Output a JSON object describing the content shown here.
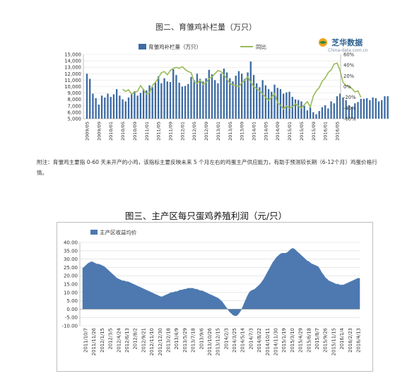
{
  "chart_data": [
    {
      "type": "bar",
      "title": "图二、育雏鸡补栏量（万只）",
      "legend": [
        "育雏鸡补栏量（万只）",
        "同比"
      ],
      "legend_position": "top",
      "colors": {
        "bar": "#3d6ba3",
        "line": "#9bbb59"
      },
      "y_left_ticks": [
        "15,000",
        "14,000",
        "13,000",
        "12,000",
        "11,000",
        "10,000",
        "9,000",
        "8,000",
        "7,000",
        "6,000",
        "5,000"
      ],
      "y_left_range": [
        5000,
        15000
      ],
      "y_right_ticks": [
        "60%",
        "40%",
        "20%",
        "0%",
        "-20%",
        "-40%",
        "-60%"
      ],
      "y_right_range": [
        -60,
        60
      ],
      "x_ticks": [
        "2009/05",
        "2009/09",
        "2010/01",
        "2010/05",
        "2010/09",
        "2011/01",
        "2011/05",
        "2011/09",
        "2012/01",
        "2012/05",
        "2012/09",
        "2013/01",
        "2013/05",
        "2013/09",
        "2014/01",
        "2014/05",
        "2014/09",
        "2015/01",
        "2015/05",
        "2015/09",
        "2016/01",
        "2016/05"
      ],
      "series": [
        {
          "name": "育雏鸡补栏量（万只）",
          "kind": "bar",
          "start": "2009/05",
          "values": [
            12000,
            11200,
            8900,
            8200,
            7200,
            8600,
            8300,
            8900,
            8400,
            8800,
            9600,
            8600,
            8000,
            7700,
            8300,
            8800,
            9300,
            8600,
            9000,
            9600,
            9400,
            10200,
            9900,
            10600,
            11600,
            10500,
            11300,
            10800,
            10700,
            12700,
            11800,
            10600,
            10000,
            10100,
            10400,
            11500,
            11000,
            12000,
            11200,
            10800,
            11300,
            12600,
            11900,
            11000,
            10500,
            12000,
            12800,
            12200,
            11300,
            10800,
            11700,
            12400,
            12000,
            11200,
            12200,
            13900,
            11800,
            10500,
            9900,
            11000,
            10200,
            9600,
            9200,
            10300,
            9800,
            9600,
            8900,
            9100,
            9200,
            8400,
            8000,
            7900,
            7700,
            7000,
            6300,
            6800,
            6000,
            5700,
            6200,
            6800,
            7100,
            6600,
            7700,
            7400,
            8500,
            8900,
            8300,
            7900,
            7100,
            6800,
            7400,
            7600,
            8100,
            8100,
            8200,
            7900,
            8300,
            8200,
            7700,
            7900,
            8500,
            8500
          ]
        },
        {
          "name": "同比",
          "kind": "line",
          "start": "2010/05",
          "values": [
            -5,
            -9,
            -6,
            -14,
            -10,
            -9,
            2,
            -6,
            -14,
            -12,
            2,
            8,
            16,
            26,
            28,
            22,
            30,
            34,
            36,
            34,
            37,
            32,
            28,
            26,
            9,
            6,
            12,
            4,
            7,
            15,
            18,
            24,
            30,
            28,
            22,
            14,
            6,
            3,
            2,
            0,
            7,
            12,
            18,
            8,
            0,
            -4,
            -8,
            -14,
            -20,
            -26,
            -20,
            -13,
            -30,
            -35,
            -42,
            -36,
            -40,
            -38,
            -32,
            -36,
            -40,
            -34,
            -28,
            -38,
            -18,
            -8,
            -2,
            10,
            16,
            26,
            31,
            42,
            44,
            30,
            8,
            2,
            0,
            -4,
            -10,
            -8,
            -20
          ]
        }
      ]
    },
    {
      "type": "area",
      "title": "图三、主产区每只蛋鸡养殖利润（元/只）",
      "legend": [
        "主产区收益均价"
      ],
      "legend_position": "top-left",
      "color": "#4d79b0",
      "ylim": [
        -10,
        40
      ],
      "y_ticks": [
        "40.00",
        "35.00",
        "30.00",
        "25.00",
        "20.00",
        "15.00",
        "10.00",
        "5.00",
        "0.00",
        "-5.00",
        "-10.00"
      ],
      "x_ticks": [
        "2011/10/7",
        "2011/11/26",
        "2012/1/15",
        "2012/3/5",
        "2012/4/24",
        "2012/6/13",
        "2012/8/2",
        "2012/9/21",
        "2012/11/10",
        "2012/12/30",
        "2013/2/18",
        "2013/4/9",
        "2013/5/29",
        "2013/7/18",
        "2013/9/6",
        "2013/10/26",
        "2013/12/15",
        "2014/2/3",
        "2014/3/25",
        "2014/5/14",
        "2014/7/3",
        "2014/8/22",
        "2014/10/11",
        "2014/11/30",
        "2015/1/19",
        "2015/3/10",
        "2015/4/29",
        "2015/6/18",
        "2015/8/7",
        "2015/9/26",
        "2015/11/15",
        "2016/1/4",
        "2016/2/23",
        "2016/4/13"
      ],
      "values": [
        24.5,
        25.5,
        26.5,
        27.5,
        28,
        28.5,
        28,
        27.5,
        27,
        27,
        26.5,
        26,
        25.5,
        24.5,
        23.5,
        22.5,
        21.5,
        20.5,
        19.5,
        18.5,
        18,
        17.5,
        17,
        17,
        16.5,
        16.5,
        16,
        15.5,
        15,
        14.5,
        14,
        13.5,
        13,
        12.5,
        12,
        11.5,
        11,
        10.5,
        10,
        9.5,
        9,
        8.5,
        8,
        7.5,
        7.5,
        8,
        8.5,
        9,
        9.5,
        10,
        10,
        10.5,
        10.5,
        11,
        11.5,
        11.5,
        12,
        12,
        12.5,
        12.5,
        12.5,
        12.5,
        12,
        12,
        11.5,
        11,
        11,
        10.5,
        10,
        9.5,
        9,
        8.5,
        8,
        7.5,
        7,
        6.5,
        5.5,
        4.5,
        3,
        1.5,
        0,
        -1.5,
        -2.5,
        -3.5,
        -4,
        -4,
        -3,
        -1.5,
        0.5,
        3,
        5.5,
        8,
        10,
        11,
        11.5,
        12,
        13,
        14,
        15,
        16.5,
        18,
        20,
        22,
        24,
        26,
        28,
        29.5,
        31,
        32,
        33,
        33.5,
        33.5,
        33.5,
        34,
        35,
        36,
        36.5,
        36,
        35,
        34,
        33,
        32,
        31,
        30,
        29,
        28.5,
        27.5,
        27,
        26.5,
        26,
        25.5,
        24,
        22,
        20.5,
        19,
        18,
        17,
        16.5,
        16,
        15.5,
        15,
        15,
        14.5,
        14.5,
        14.5,
        15,
        15.5,
        16,
        16.5,
        17,
        17.5,
        18,
        18.5,
        18.5
      ]
    }
  ],
  "logo": {
    "brand": "芝华数据",
    "url": "China-data.com.cn"
  },
  "note": "附注：育雏鸡主要指 0-60 天未开产的小鸡，该指标主要反映未来 5 个月左右的鸡蛋主产供应能力，有助于预测较长期（6-12个月）鸡蛋价格行情。"
}
